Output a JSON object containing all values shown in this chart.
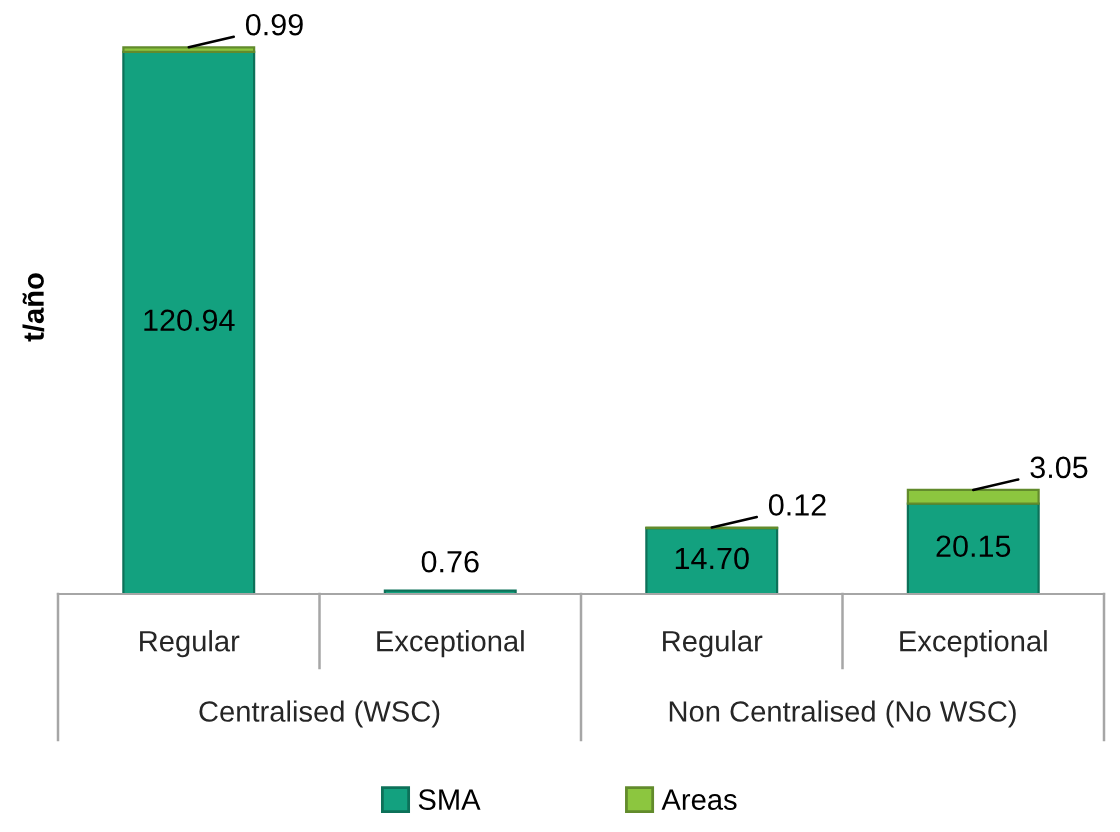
{
  "chart_data": {
    "type": "bar",
    "stacked": true,
    "ylabel": "t/año",
    "categories": [
      "Regular",
      "Exceptional",
      "Regular",
      "Exceptional"
    ],
    "annotations": [
      "Centralised (WSC)",
      "Non Centralised (No WSC)"
    ],
    "series": [
      {
        "name": "SMA",
        "color": "#13a17f",
        "values": [
          120.94,
          0.76,
          14.7,
          20.15
        ],
        "value_labels": [
          "120.94",
          "0.76",
          "14.70",
          "20.15"
        ]
      },
      {
        "name": "Areas",
        "color": "#8cc63f",
        "values": [
          0.99,
          null,
          0.12,
          3.05
        ],
        "value_labels": [
          "0.99",
          null,
          "0.12",
          "3.05"
        ]
      }
    ],
    "legend": "bottom"
  }
}
